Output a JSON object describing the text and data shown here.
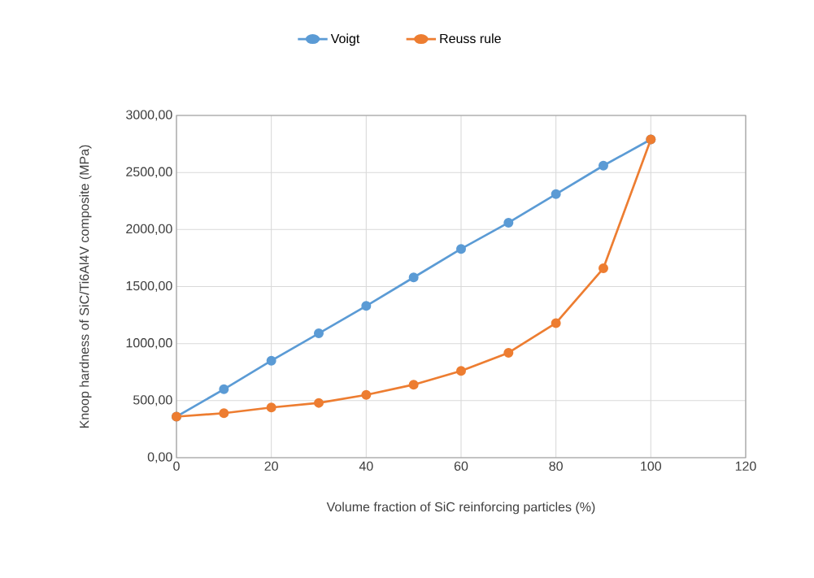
{
  "chart_data": {
    "type": "line",
    "xlabel": "Volume fraction of SiC reinforcing particles (%)",
    "ylabel": "Knoop hardness of SiC/Ti6Al4V composite (MPa)",
    "x": [
      0,
      10,
      20,
      30,
      40,
      50,
      60,
      70,
      80,
      90,
      100
    ],
    "series": [
      {
        "name": "Voigt",
        "color": "#5b9bd5",
        "values": [
          360,
          600,
          850,
          1090,
          1330,
          1580,
          1830,
          2060,
          2310,
          2560,
          2790
        ]
      },
      {
        "name": "Reuss rule",
        "color": "#ed7d31",
        "values": [
          360,
          390,
          440,
          480,
          550,
          640,
          760,
          920,
          1180,
          1660,
          2790
        ]
      }
    ],
    "xlim": [
      0,
      120
    ],
    "xticks": [
      0,
      20,
      40,
      60,
      80,
      100,
      120
    ],
    "ylim": [
      0,
      3000
    ],
    "yticks": [
      {
        "value": 0,
        "label": "0,00"
      },
      {
        "value": 500,
        "label": "500,00"
      },
      {
        "value": 1000,
        "label": "1000,00"
      },
      {
        "value": 1500,
        "label": "1500,00"
      },
      {
        "value": 2000,
        "label": "2000,00"
      },
      {
        "value": 2500,
        "label": "2500,00"
      },
      {
        "value": 3000,
        "label": "3000,00"
      }
    ],
    "grid": true,
    "legend": "top",
    "marker": "circle",
    "line_style": "solid"
  }
}
